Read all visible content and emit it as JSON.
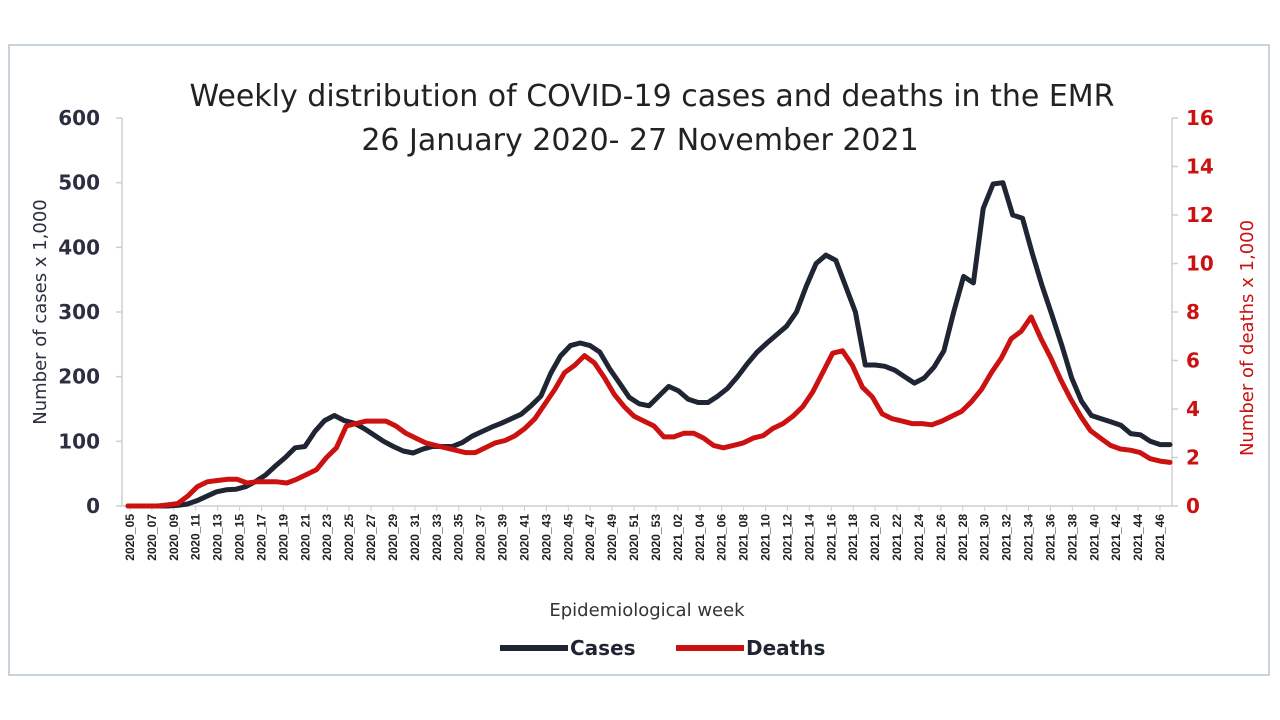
{
  "chart_data": {
    "type": "line",
    "title_line1": "Weekly distribution of COVID-19 cases and deaths in the EMR",
    "title_line2": "26 January 2020- 27 November 2021",
    "xlabel": "Epidemiological week",
    "ylabel_left": "Number of cases x 1,000",
    "ylabel_right": "Number of deaths x 1,000",
    "ylim_left": [
      0,
      600
    ],
    "ylim_right": [
      0,
      16
    ],
    "yticks_left": [
      0,
      100,
      200,
      300,
      400,
      500,
      600
    ],
    "yticks_right": [
      0,
      2,
      4,
      6,
      8,
      10,
      12,
      14,
      16
    ],
    "x_tick_labels": [
      "2020_05",
      "2020_07",
      "2020_09",
      "2020_11",
      "2020_13",
      "2020_15",
      "2020_17",
      "2020_19",
      "2020_21",
      "2020_23",
      "2020_25",
      "2020_27",
      "2020_29",
      "2020_31",
      "2020_33",
      "2020_35",
      "2020_37",
      "2020_39",
      "2020_41",
      "2020_43",
      "2020_45",
      "2020_47",
      "2020_49",
      "2020_51",
      "2020_53",
      "2021_02",
      "2021_04",
      "2021_06",
      "2021_08",
      "2021_10",
      "2021_12",
      "2021_14",
      "2021_16",
      "2021_18",
      "2021_20",
      "2021_22",
      "2021_24",
      "2021_26",
      "2021_28",
      "2021_30",
      "2021_32",
      "2021_34",
      "2021_36",
      "2021_38",
      "2021_40",
      "2021_42",
      "2021_44",
      "2021_46"
    ],
    "legend_position": "bottom",
    "grid": false,
    "series": [
      {
        "name": "Cases",
        "axis": "left",
        "color": "#1f2533",
        "values": [
          0,
          0,
          0,
          0,
          0,
          1,
          3,
          8,
          15,
          22,
          25,
          26,
          30,
          38,
          48,
          62,
          75,
          90,
          92,
          115,
          132,
          140,
          132,
          128,
          120,
          110,
          100,
          92,
          85,
          82,
          88,
          92,
          92,
          92,
          98,
          108,
          115,
          122,
          128,
          135,
          142,
          155,
          170,
          205,
          232,
          248,
          252,
          248,
          238,
          212,
          190,
          168,
          158,
          155,
          170,
          185,
          178,
          165,
          160,
          160,
          170,
          182,
          200,
          220,
          238,
          252,
          265,
          278,
          300,
          340,
          375,
          388,
          380,
          340,
          300,
          218,
          218,
          216,
          210,
          200,
          190,
          198,
          215,
          240,
          300,
          355,
          345,
          460,
          498,
          500,
          450,
          445,
          390,
          340,
          295,
          248,
          198,
          162,
          140,
          135,
          130,
          125,
          112,
          110,
          100,
          95,
          95
        ]
      },
      {
        "name": "Deaths",
        "axis": "right",
        "color": "#cc1111",
        "values": [
          0,
          0,
          0,
          0,
          0.05,
          0.1,
          0.4,
          0.8,
          1.0,
          1.05,
          1.1,
          1.1,
          0.95,
          1.0,
          1.0,
          1.0,
          0.95,
          1.1,
          1.3,
          1.5,
          2.0,
          2.4,
          3.3,
          3.4,
          3.5,
          3.5,
          3.5,
          3.3,
          3.0,
          2.8,
          2.6,
          2.5,
          2.4,
          2.3,
          2.2,
          2.2,
          2.4,
          2.6,
          2.7,
          2.9,
          3.2,
          3.6,
          4.2,
          4.8,
          5.5,
          5.8,
          6.2,
          5.9,
          5.3,
          4.6,
          4.1,
          3.7,
          3.5,
          3.3,
          2.85,
          2.85,
          3.0,
          3.0,
          2.8,
          2.5,
          2.4,
          2.5,
          2.6,
          2.8,
          2.9,
          3.2,
          3.4,
          3.7,
          4.1,
          4.7,
          5.5,
          6.3,
          6.4,
          5.8,
          4.9,
          4.5,
          3.8,
          3.6,
          3.5,
          3.4,
          3.4,
          3.35,
          3.5,
          3.7,
          3.9,
          4.3,
          4.8,
          5.5,
          6.1,
          6.9,
          7.2,
          7.8,
          6.9,
          6.1,
          5.2,
          4.4,
          3.7,
          3.1,
          2.8,
          2.5,
          2.35,
          2.3,
          2.2,
          1.95,
          1.85,
          1.8
        ]
      }
    ]
  }
}
